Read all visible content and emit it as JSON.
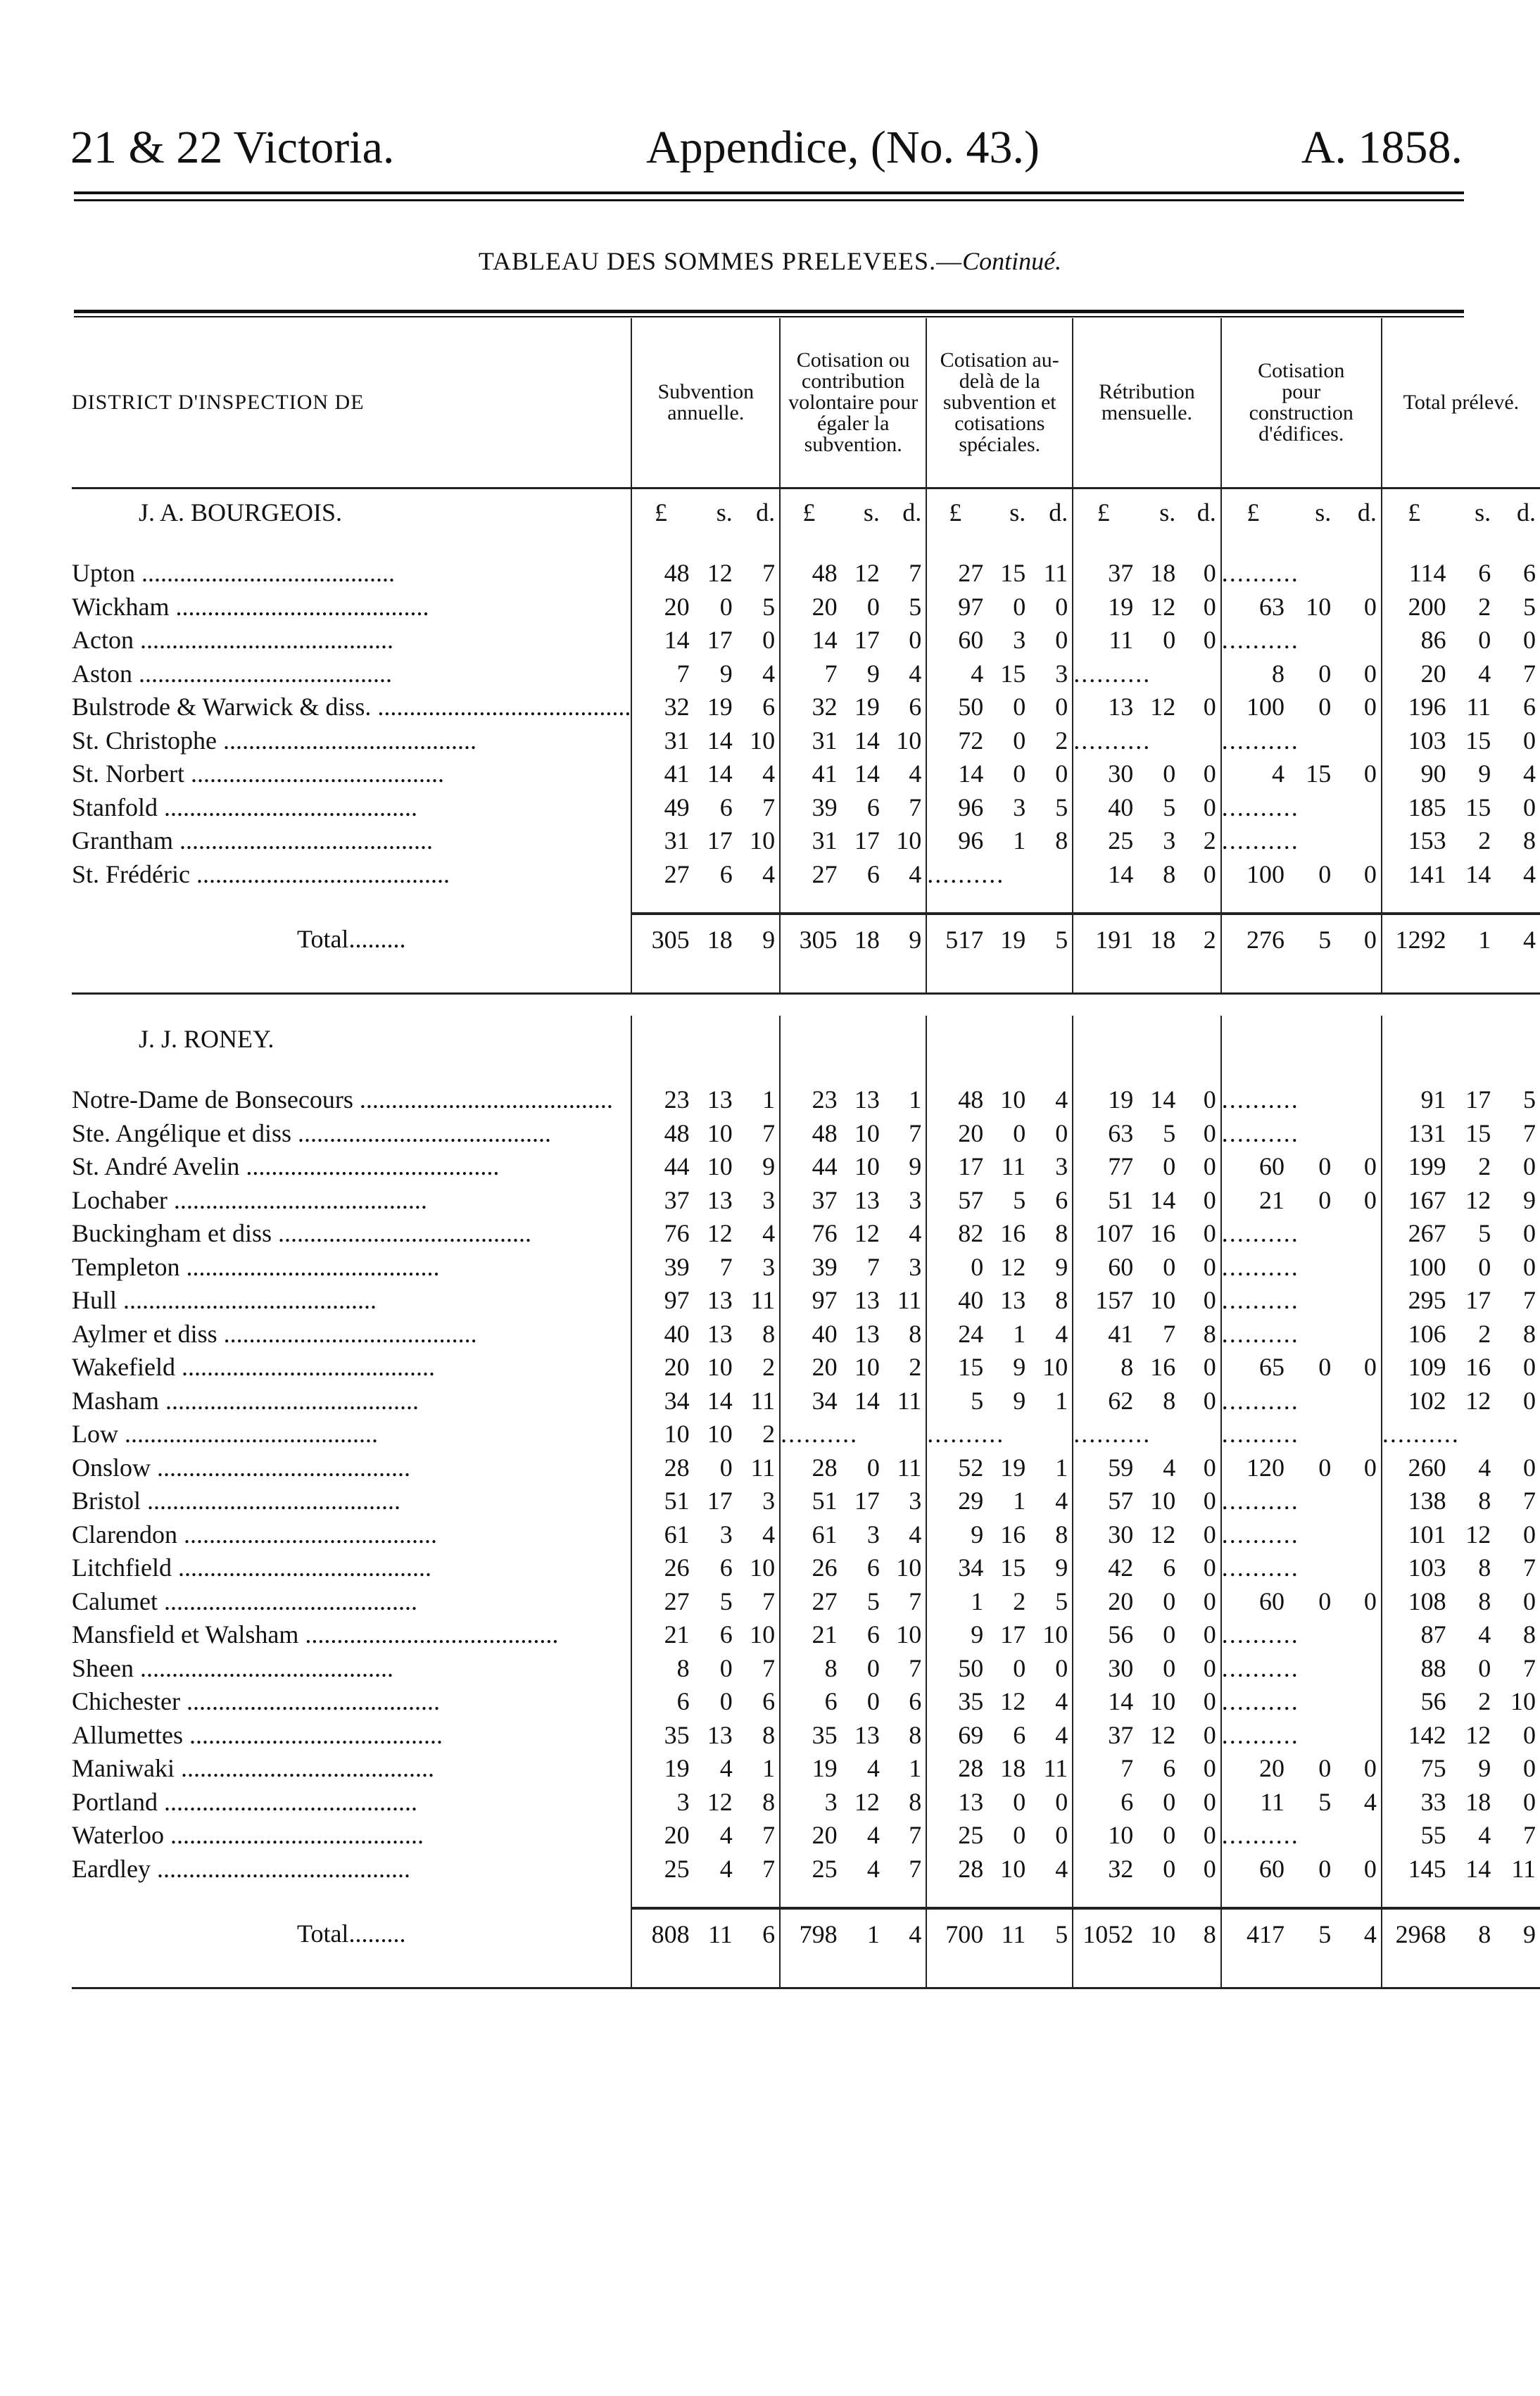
{
  "header": {
    "left": "21 & 22 Victoria.",
    "center": "Appendice, (No. 43.)",
    "right": "A. 1858."
  },
  "subtitle": {
    "main": "TABLEAU DES SOMMES PRELEVEES.—",
    "italic": "Continué."
  },
  "columns": {
    "district": "DISTRICT D'INSPECTION DE",
    "c1": "Subvention annuelle.",
    "c2": "Cotisation ou contribution volontaire pour égaler la subvention.",
    "c3": "Cotisation au-delà de la subvention et cotisations spéciales.",
    "c4": "Rétribution mensuelle.",
    "c5": "Cotisation pour construction d'édifices.",
    "c6": "Total prélevé."
  },
  "units": [
    "£",
    "s.",
    "d."
  ],
  "dots": "..........",
  "sections": [
    {
      "title": "J. A. BOURGEOIS.",
      "show_units": true,
      "rows": [
        {
          "name": "Upton",
          "v": [
            [
              48,
              12,
              7
            ],
            [
              48,
              12,
              7
            ],
            [
              27,
              15,
              11
            ],
            [
              37,
              18,
              0
            ],
            null,
            [
              114,
              6,
              6
            ]
          ]
        },
        {
          "name": "Wickham",
          "v": [
            [
              20,
              0,
              5
            ],
            [
              20,
              0,
              5
            ],
            [
              97,
              0,
              0
            ],
            [
              19,
              12,
              0
            ],
            [
              63,
              10,
              0
            ],
            [
              200,
              2,
              5
            ]
          ]
        },
        {
          "name": "Acton",
          "v": [
            [
              14,
              17,
              0
            ],
            [
              14,
              17,
              0
            ],
            [
              60,
              3,
              0
            ],
            [
              11,
              0,
              0
            ],
            null,
            [
              86,
              0,
              0
            ]
          ]
        },
        {
          "name": "Aston",
          "v": [
            [
              7,
              9,
              4
            ],
            [
              7,
              9,
              4
            ],
            [
              4,
              15,
              3
            ],
            null,
            [
              8,
              0,
              0
            ],
            [
              20,
              4,
              7
            ]
          ]
        },
        {
          "name": "Bulstrode & Warwick & diss.",
          "v": [
            [
              32,
              19,
              6
            ],
            [
              32,
              19,
              6
            ],
            [
              50,
              0,
              0
            ],
            [
              13,
              12,
              0
            ],
            [
              100,
              0,
              0
            ],
            [
              196,
              11,
              6
            ]
          ]
        },
        {
          "name": "St. Christophe",
          "v": [
            [
              31,
              14,
              10
            ],
            [
              31,
              14,
              10
            ],
            [
              72,
              0,
              2
            ],
            null,
            null,
            [
              103,
              15,
              0
            ]
          ]
        },
        {
          "name": "St. Norbert",
          "v": [
            [
              41,
              14,
              4
            ],
            [
              41,
              14,
              4
            ],
            [
              14,
              0,
              0
            ],
            [
              30,
              0,
              0
            ],
            [
              4,
              15,
              0
            ],
            [
              90,
              9,
              4
            ]
          ]
        },
        {
          "name": "Stanfold",
          "v": [
            [
              49,
              6,
              7
            ],
            [
              39,
              6,
              7
            ],
            [
              96,
              3,
              5
            ],
            [
              40,
              5,
              0
            ],
            null,
            [
              185,
              15,
              0
            ]
          ]
        },
        {
          "name": "Grantham",
          "v": [
            [
              31,
              17,
              10
            ],
            [
              31,
              17,
              10
            ],
            [
              96,
              1,
              8
            ],
            [
              25,
              3,
              2
            ],
            null,
            [
              153,
              2,
              8
            ]
          ]
        },
        {
          "name": "St. Frédéric",
          "v": [
            [
              27,
              6,
              4
            ],
            [
              27,
              6,
              4
            ],
            null,
            [
              14,
              8,
              0
            ],
            [
              100,
              0,
              0
            ],
            [
              141,
              14,
              4
            ]
          ]
        }
      ],
      "total": {
        "label": "Total",
        "v": [
          [
            305,
            18,
            9
          ],
          [
            305,
            18,
            9
          ],
          [
            517,
            19,
            5
          ],
          [
            191,
            18,
            2
          ],
          [
            276,
            5,
            0
          ],
          [
            1292,
            1,
            4
          ]
        ]
      }
    },
    {
      "title": "J. J. RONEY.",
      "show_units": false,
      "rows": [
        {
          "name": "Notre-Dame de Bonsecours",
          "v": [
            [
              23,
              13,
              1
            ],
            [
              23,
              13,
              1
            ],
            [
              48,
              10,
              4
            ],
            [
              19,
              14,
              0
            ],
            null,
            [
              91,
              17,
              5
            ]
          ]
        },
        {
          "name": "Ste. Angélique et diss",
          "v": [
            [
              48,
              10,
              7
            ],
            [
              48,
              10,
              7
            ],
            [
              20,
              0,
              0
            ],
            [
              63,
              5,
              0
            ],
            null,
            [
              131,
              15,
              7
            ]
          ]
        },
        {
          "name": "St. André Avelin",
          "v": [
            [
              44,
              10,
              9
            ],
            [
              44,
              10,
              9
            ],
            [
              17,
              11,
              3
            ],
            [
              77,
              0,
              0
            ],
            [
              60,
              0,
              0
            ],
            [
              199,
              2,
              0
            ]
          ]
        },
        {
          "name": "Lochaber",
          "v": [
            [
              37,
              13,
              3
            ],
            [
              37,
              13,
              3
            ],
            [
              57,
              5,
              6
            ],
            [
              51,
              14,
              0
            ],
            [
              21,
              0,
              0
            ],
            [
              167,
              12,
              9
            ]
          ]
        },
        {
          "name": "Buckingham et diss",
          "v": [
            [
              76,
              12,
              4
            ],
            [
              76,
              12,
              4
            ],
            [
              82,
              16,
              8
            ],
            [
              107,
              16,
              0
            ],
            null,
            [
              267,
              5,
              0
            ]
          ]
        },
        {
          "name": "Templeton",
          "v": [
            [
              39,
              7,
              3
            ],
            [
              39,
              7,
              3
            ],
            [
              0,
              12,
              9
            ],
            [
              60,
              0,
              0
            ],
            null,
            [
              100,
              0,
              0
            ]
          ]
        },
        {
          "name": "Hull",
          "v": [
            [
              97,
              13,
              11
            ],
            [
              97,
              13,
              11
            ],
            [
              40,
              13,
              8
            ],
            [
              157,
              10,
              0
            ],
            null,
            [
              295,
              17,
              7
            ]
          ]
        },
        {
          "name": "Aylmer et diss",
          "v": [
            [
              40,
              13,
              8
            ],
            [
              40,
              13,
              8
            ],
            [
              24,
              1,
              4
            ],
            [
              41,
              7,
              8
            ],
            null,
            [
              106,
              2,
              8
            ]
          ]
        },
        {
          "name": "Wakefield",
          "v": [
            [
              20,
              10,
              2
            ],
            [
              20,
              10,
              2
            ],
            [
              15,
              9,
              10
            ],
            [
              8,
              16,
              0
            ],
            [
              65,
              0,
              0
            ],
            [
              109,
              16,
              0
            ]
          ]
        },
        {
          "name": "Masham",
          "v": [
            [
              34,
              14,
              11
            ],
            [
              34,
              14,
              11
            ],
            [
              5,
              9,
              1
            ],
            [
              62,
              8,
              0
            ],
            null,
            [
              102,
              12,
              0
            ]
          ]
        },
        {
          "name": "Low",
          "v": [
            [
              10,
              10,
              2
            ],
            null,
            null,
            null,
            null,
            null
          ]
        },
        {
          "name": "Onslow",
          "v": [
            [
              28,
              0,
              11
            ],
            [
              28,
              0,
              11
            ],
            [
              52,
              19,
              1
            ],
            [
              59,
              4,
              0
            ],
            [
              120,
              0,
              0
            ],
            [
              260,
              4,
              0
            ]
          ]
        },
        {
          "name": "Bristol",
          "v": [
            [
              51,
              17,
              3
            ],
            [
              51,
              17,
              3
            ],
            [
              29,
              1,
              4
            ],
            [
              57,
              10,
              0
            ],
            null,
            [
              138,
              8,
              7
            ]
          ]
        },
        {
          "name": "Clarendon",
          "v": [
            [
              61,
              3,
              4
            ],
            [
              61,
              3,
              4
            ],
            [
              9,
              16,
              8
            ],
            [
              30,
              12,
              0
            ],
            null,
            [
              101,
              12,
              0
            ]
          ]
        },
        {
          "name": "Litchfield",
          "v": [
            [
              26,
              6,
              10
            ],
            [
              26,
              6,
              10
            ],
            [
              34,
              15,
              9
            ],
            [
              42,
              6,
              0
            ],
            null,
            [
              103,
              8,
              7
            ]
          ]
        },
        {
          "name": "Calumet",
          "v": [
            [
              27,
              5,
              7
            ],
            [
              27,
              5,
              7
            ],
            [
              1,
              2,
              5
            ],
            [
              20,
              0,
              0
            ],
            [
              60,
              0,
              0
            ],
            [
              108,
              8,
              0
            ]
          ]
        },
        {
          "name": "Mansfield et Walsham",
          "v": [
            [
              21,
              6,
              10
            ],
            [
              21,
              6,
              10
            ],
            [
              9,
              17,
              10
            ],
            [
              56,
              0,
              0
            ],
            null,
            [
              87,
              4,
              8
            ]
          ]
        },
        {
          "name": "Sheen",
          "v": [
            [
              8,
              0,
              7
            ],
            [
              8,
              0,
              7
            ],
            [
              50,
              0,
              0
            ],
            [
              30,
              0,
              0
            ],
            null,
            [
              88,
              0,
              7
            ]
          ]
        },
        {
          "name": "Chichester",
          "v": [
            [
              6,
              0,
              6
            ],
            [
              6,
              0,
              6
            ],
            [
              35,
              12,
              4
            ],
            [
              14,
              10,
              0
            ],
            null,
            [
              56,
              2,
              10
            ]
          ]
        },
        {
          "name": "Allumettes",
          "v": [
            [
              35,
              13,
              8
            ],
            [
              35,
              13,
              8
            ],
            [
              69,
              6,
              4
            ],
            [
              37,
              12,
              0
            ],
            null,
            [
              142,
              12,
              0
            ]
          ]
        },
        {
          "name": "Maniwaki",
          "v": [
            [
              19,
              4,
              1
            ],
            [
              19,
              4,
              1
            ],
            [
              28,
              18,
              11
            ],
            [
              7,
              6,
              0
            ],
            [
              20,
              0,
              0
            ],
            [
              75,
              9,
              0
            ]
          ]
        },
        {
          "name": "Portland",
          "v": [
            [
              3,
              12,
              8
            ],
            [
              3,
              12,
              8
            ],
            [
              13,
              0,
              0
            ],
            [
              6,
              0,
              0
            ],
            [
              11,
              5,
              4
            ],
            [
              33,
              18,
              0
            ]
          ]
        },
        {
          "name": "Waterloo",
          "v": [
            [
              20,
              4,
              7
            ],
            [
              20,
              4,
              7
            ],
            [
              25,
              0,
              0
            ],
            [
              10,
              0,
              0
            ],
            null,
            [
              55,
              4,
              7
            ]
          ]
        },
        {
          "name": "Eardley",
          "v": [
            [
              25,
              4,
              7
            ],
            [
              25,
              4,
              7
            ],
            [
              28,
              10,
              4
            ],
            [
              32,
              0,
              0
            ],
            [
              60,
              0,
              0
            ],
            [
              145,
              14,
              11
            ]
          ]
        }
      ],
      "total": {
        "label": "Total",
        "v": [
          [
            808,
            11,
            6
          ],
          [
            798,
            1,
            4
          ],
          [
            700,
            11,
            5
          ],
          [
            1052,
            10,
            8
          ],
          [
            417,
            5,
            4
          ],
          [
            2968,
            8,
            9
          ]
        ]
      }
    }
  ]
}
